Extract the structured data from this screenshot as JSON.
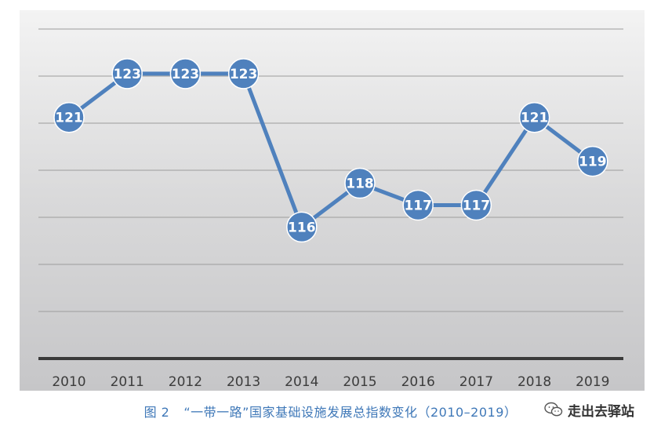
{
  "chart_data": {
    "type": "line",
    "categories": [
      "2010",
      "2011",
      "2012",
      "2013",
      "2014",
      "2015",
      "2016",
      "2017",
      "2018",
      "2019"
    ],
    "series": [
      {
        "values": [
          121,
          123,
          123,
          123,
          116,
          118,
          117,
          117,
          121,
          119
        ]
      }
    ],
    "ylim": [
      110,
      125
    ],
    "grid": true,
    "legend": "none",
    "colors": {
      "line": "#4f81bd",
      "marker_fill": "#4f81bd",
      "label": "#ffffff",
      "axis": "#3a3a3a"
    }
  },
  "caption": {
    "fig_no": "图 2",
    "text": "“一带一路”国家基础设施发展总指数变化（2010–2019）"
  },
  "watermark": {
    "icon": "wechat-icon",
    "text": "走出去驿站"
  }
}
